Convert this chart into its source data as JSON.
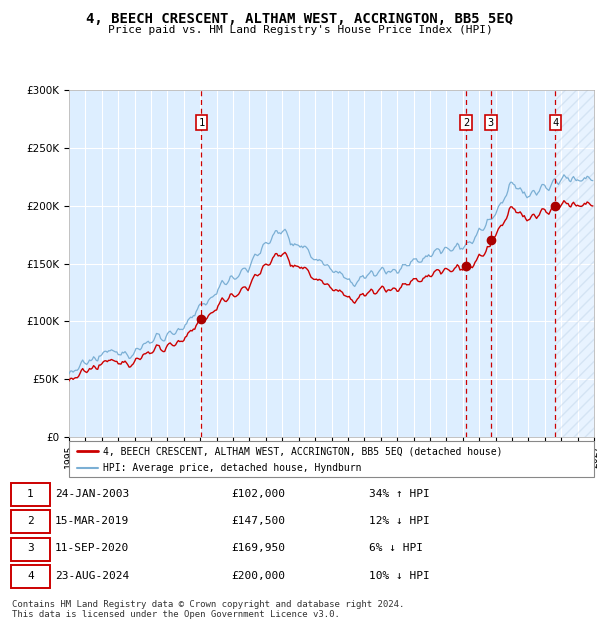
{
  "title": "4, BEECH CRESCENT, ALTHAM WEST, ACCRINGTON, BB5 5EQ",
  "subtitle": "Price paid vs. HM Land Registry's House Price Index (HPI)",
  "legend_line1": "4, BEECH CRESCENT, ALTHAM WEST, ACCRINGTON, BB5 5EQ (detached house)",
  "legend_line2": "HPI: Average price, detached house, Hyndburn",
  "footer1": "Contains HM Land Registry data © Crown copyright and database right 2024.",
  "footer2": "This data is licensed under the Open Government Licence v3.0.",
  "transactions": [
    {
      "num": 1,
      "date": "24-JAN-2003",
      "price": 102000,
      "pct": "34%",
      "dir": "↑"
    },
    {
      "num": 2,
      "date": "15-MAR-2019",
      "price": 147500,
      "pct": "12%",
      "dir": "↓"
    },
    {
      "num": 3,
      "date": "11-SEP-2020",
      "price": 169950,
      "pct": "6%",
      "dir": "↓"
    },
    {
      "num": 4,
      "date": "23-AUG-2024",
      "price": 200000,
      "pct": "10%",
      "dir": "↓"
    }
  ],
  "transaction_dates_decimal": [
    2003.07,
    2019.21,
    2020.71,
    2024.64
  ],
  "transaction_prices": [
    102000,
    147500,
    169950,
    200000
  ],
  "ylim": [
    0,
    300000
  ],
  "xlim_start": 1995.0,
  "xlim_end": 2027.0,
  "hatch_start": 2024.64,
  "red_line_color": "#cc0000",
  "blue_line_color": "#7bafd4",
  "dot_color": "#aa0000",
  "vline_color": "#cc0000",
  "bg_color": "#ddeeff",
  "grid_color": "#ffffff",
  "hatch_color": "#b0c8e0"
}
